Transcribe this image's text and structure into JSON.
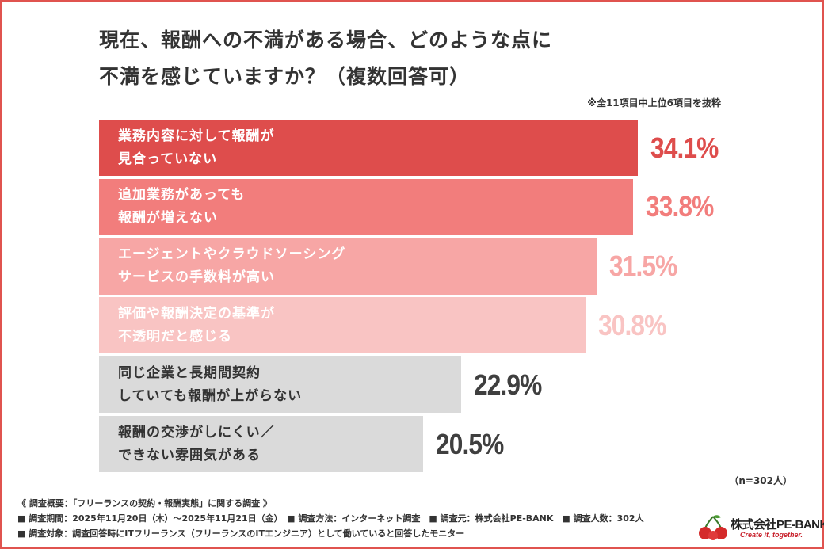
{
  "title_line1": "現在、報酬への不満がある場合、どのような点に",
  "title_line2": "不満を感じていますか？（複数回答可）",
  "note": "※全11項目中上位6項目を抜粋",
  "sample_size": "（n=302人）",
  "footer": {
    "line1": "《 調査概要：「フリーランスの契約・報酬実態」に関する調査 》",
    "line2": "■ 調査期間：2025年11月20日（木）〜2025年11月21日（金）　■ 調査方法：インターネット調査　■ 調査元：株式会社PE-BANK　■ 調査人数：302人",
    "line3": "■ 調査対象：調査回答時にITフリーランス（フリーランスのITエンジニア）として働いていると回答したモニター"
  },
  "logo": {
    "name": "株式会社PE-BANK",
    "tagline": "Create it, together."
  },
  "chart_data": {
    "type": "bar",
    "orientation": "horizontal",
    "unit": "%",
    "xlim": [
      0,
      40
    ],
    "bars": [
      {
        "line1": "業務内容に対して報酬が",
        "line2": "見合っていない",
        "value": 34.1,
        "label": "34.1%",
        "color": "#de4d4c",
        "text_color": "#ffffff",
        "value_color": "#de4d4c"
      },
      {
        "line1": "追加業務があっても",
        "line2": "報酬が増えない",
        "value": 33.8,
        "label": "33.8%",
        "color": "#f27d7c",
        "text_color": "#ffffff",
        "value_color": "#f27d7c"
      },
      {
        "line1": "エージェントやクラウドソーシング",
        "line2": "サービスの手数料が高い",
        "value": 31.5,
        "label": "31.5%",
        "color": "#f7a6a5",
        "text_color": "#ffffff",
        "value_color": "#f7a6a5"
      },
      {
        "line1": "評価や報酬決定の基準が",
        "line2": "不透明だと感じる",
        "value": 30.8,
        "label": "30.8%",
        "color": "#f9c4c3",
        "text_color": "#ffffff",
        "value_color": "#f9c4c3"
      },
      {
        "line1": "同じ企業と長期間契約",
        "line2": "していても報酬が上がらない",
        "value": 22.9,
        "label": "22.9%",
        "color": "#dadada",
        "text_color": "#333333",
        "value_color": "#3f3f3f"
      },
      {
        "line1": "報酬の交渉がしにくい／",
        "line2": "できない雰囲気がある",
        "value": 20.5,
        "label": "20.5%",
        "color": "#dadada",
        "text_color": "#333333",
        "value_color": "#3f3f3f"
      }
    ]
  },
  "colors": {
    "frame": "#e0534f",
    "title": "#333333"
  }
}
